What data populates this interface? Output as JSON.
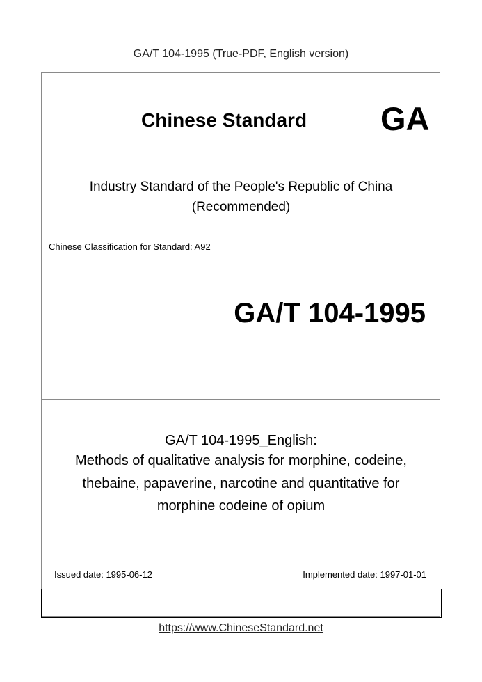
{
  "header": "GA/T 104-1995 (True-PDF, English version)",
  "cover": {
    "title": "Chinese Standard",
    "mark": "GA",
    "subtitle_line1": "Industry Standard of the People's Republic of China",
    "subtitle_line2": "(Recommended)",
    "classification": "Chinese Classification for Standard: A92",
    "code": "GA/T 104-1995",
    "doc_title": [
      "GA/T 104-1995_English:",
      "Methods of qualitative analysis for morphine, codeine,",
      "thebaine, papaverine, narcotine and quantitative for",
      "morphine codeine of opium"
    ],
    "issued": "Issued date: 1995-06-12",
    "implemented": "Implemented date: 1997-01-01"
  },
  "footer_link": "https://www.ChineseStandard.net"
}
